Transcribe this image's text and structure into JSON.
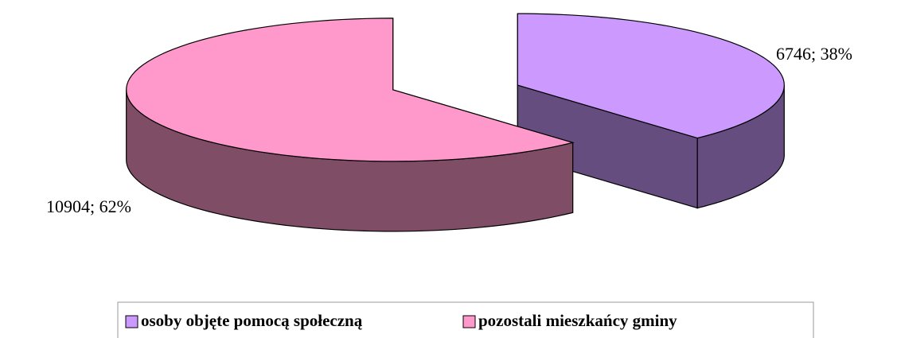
{
  "chart_data": {
    "type": "pie",
    "categories": [
      "osoby objęte pomocą społeczną",
      "pozostali mieszkańcy gminy"
    ],
    "values": [
      6746,
      10904
    ],
    "value_labels": [
      "6746; 38%",
      "10904; 62%"
    ],
    "colors": [
      "#cc99ff",
      "#ff99cc"
    ],
    "legend": "bottom"
  }
}
